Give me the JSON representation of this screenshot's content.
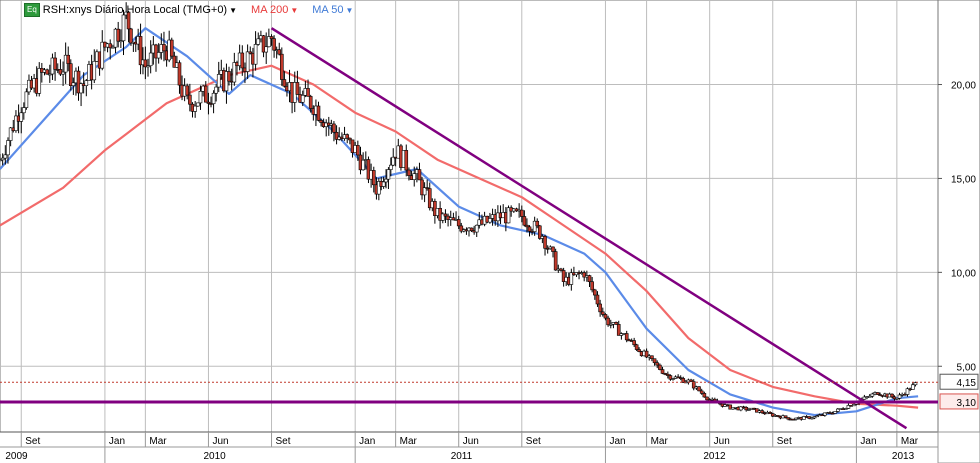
{
  "legend": {
    "badge": "Eq",
    "symbol_label": "RSH:xnys Diário Hora Local (TMG+0)",
    "ma200_label": "MA 200",
    "ma50_label": "MA 50"
  },
  "chart_data": {
    "type": "line",
    "title": "RSH:xnys Diário Hora Local (TMG+0)",
    "xlabel": "",
    "ylabel": "",
    "ylim": [
      1.5,
      24.5
    ],
    "x_range": [
      "2009-08-01",
      "2013-04-30"
    ],
    "y_ticks": [
      "5,00",
      "10,00",
      "15,00",
      "20,00"
    ],
    "y_tick_values": [
      5,
      10,
      15,
      20
    ],
    "last_price_label": "4,15",
    "last_price": 4.15,
    "support_label": "3,10",
    "support_level": 3.1,
    "month_ticks": [
      {
        "label": "Set",
        "date": "2009-09-01"
      },
      {
        "label": "Jan",
        "date": "2010-01-01"
      },
      {
        "label": "Mar",
        "date": "2010-03-01"
      },
      {
        "label": "Jun",
        "date": "2010-06-01"
      },
      {
        "label": "Set",
        "date": "2010-09-01"
      },
      {
        "label": "Jan",
        "date": "2011-01-01"
      },
      {
        "label": "Mar",
        "date": "2011-03-01"
      },
      {
        "label": "Jun",
        "date": "2011-06-01"
      },
      {
        "label": "Set",
        "date": "2011-09-01"
      },
      {
        "label": "Jan",
        "date": "2012-01-01"
      },
      {
        "label": "Mar",
        "date": "2012-03-01"
      },
      {
        "label": "Jun",
        "date": "2012-06-01"
      },
      {
        "label": "Set",
        "date": "2012-09-01"
      },
      {
        "label": "Jan",
        "date": "2013-01-01"
      },
      {
        "label": "Mar",
        "date": "2013-03-01"
      }
    ],
    "year_labels": [
      {
        "label": "2009",
        "date": "2009-08-25"
      },
      {
        "label": "2010",
        "date": "2010-06-10"
      },
      {
        "label": "2011",
        "date": "2011-06-05"
      },
      {
        "label": "2012",
        "date": "2012-06-08"
      },
      {
        "label": "2013",
        "date": "2013-03-10"
      }
    ],
    "year_boundaries": [
      "2010-01-01",
      "2011-01-01",
      "2012-01-01",
      "2013-01-01"
    ],
    "series": [
      {
        "name": "RSH",
        "color": "#000000",
        "style": "candlestick",
        "x": [
          "2009-08-01",
          "2009-09-01",
          "2009-10-01",
          "2009-11-01",
          "2009-12-01",
          "2010-01-01",
          "2010-02-01",
          "2010-03-01",
          "2010-04-01",
          "2010-05-01",
          "2010-06-01",
          "2010-07-01",
          "2010-08-01",
          "2010-09-01",
          "2010-10-01",
          "2010-11-01",
          "2010-12-01",
          "2011-01-01",
          "2011-02-01",
          "2011-03-01",
          "2011-04-01",
          "2011-05-01",
          "2011-06-01",
          "2011-07-01",
          "2011-08-01",
          "2011-09-01",
          "2011-10-01",
          "2011-11-01",
          "2011-12-01",
          "2012-01-01",
          "2012-02-01",
          "2012-03-01",
          "2012-04-01",
          "2012-05-01",
          "2012-06-01",
          "2012-07-01",
          "2012-08-01",
          "2012-09-01",
          "2012-10-01",
          "2012-11-01",
          "2012-12-01",
          "2013-01-01",
          "2013-02-01",
          "2013-03-01",
          "2013-04-01"
        ],
        "values": [
          16.0,
          19.0,
          20.5,
          21.0,
          20.0,
          22.0,
          23.5,
          21.0,
          22.0,
          19.0,
          19.5,
          20.5,
          21.5,
          22.5,
          19.5,
          19.0,
          17.5,
          16.5,
          14.5,
          16.5,
          15.0,
          13.0,
          12.5,
          12.5,
          13.0,
          13.0,
          12.0,
          9.5,
          10.0,
          7.5,
          6.5,
          5.5,
          4.5,
          4.2,
          3.2,
          2.8,
          2.7,
          2.4,
          2.2,
          2.3,
          2.6,
          3.1,
          3.6,
          3.3,
          4.15
        ]
      },
      {
        "name": "MA 200",
        "color": "#f26b6b",
        "x": [
          "2009-08-01",
          "2009-11-01",
          "2010-01-01",
          "2010-04-01",
          "2010-07-01",
          "2010-09-01",
          "2010-11-01",
          "2011-01-01",
          "2011-03-01",
          "2011-05-01",
          "2011-07-01",
          "2011-09-01",
          "2011-11-01",
          "2012-01-01",
          "2012-03-01",
          "2012-05-01",
          "2012-07-01",
          "2012-09-01",
          "2012-11-01",
          "2013-01-01",
          "2013-03-01",
          "2013-04-01"
        ],
        "values": [
          12.5,
          14.5,
          16.5,
          19.0,
          20.5,
          21.0,
          20.0,
          18.5,
          17.5,
          16.0,
          15.0,
          14.0,
          12.5,
          11.0,
          9.0,
          6.5,
          4.8,
          3.9,
          3.4,
          3.0,
          2.9,
          2.8
        ]
      },
      {
        "name": "MA 50",
        "color": "#5b8be8",
        "x": [
          "2009-08-01",
          "2009-10-01",
          "2009-12-01",
          "2010-02-01",
          "2010-03-01",
          "2010-05-01",
          "2010-07-01",
          "2010-08-01",
          "2010-10-01",
          "2010-12-01",
          "2011-02-01",
          "2011-04-01",
          "2011-06-01",
          "2011-08-01",
          "2011-10-01",
          "2011-12-01",
          "2012-01-01",
          "2012-03-01",
          "2012-05-01",
          "2012-07-01",
          "2012-09-01",
          "2012-11-01",
          "2013-01-01",
          "2013-03-01",
          "2013-04-01"
        ],
        "values": [
          15.5,
          18.0,
          20.5,
          22.0,
          23.0,
          21.5,
          19.5,
          20.5,
          19.5,
          17.5,
          15.0,
          15.5,
          13.5,
          12.5,
          12.0,
          11.0,
          10.0,
          7.0,
          4.8,
          3.5,
          2.8,
          2.4,
          2.6,
          3.3,
          3.4
        ]
      }
    ],
    "trendlines": [
      {
        "color": "#800080",
        "from": {
          "x": "2010-09-01",
          "y": 23.0
        },
        "to": {
          "x": "2013-03-15",
          "y": 1.7
        }
      },
      {
        "color": "#800080",
        "from": {
          "x": "2009-08-01",
          "y": 3.1
        },
        "to": {
          "x": "2013-04-30",
          "y": 3.1
        }
      }
    ],
    "grid": true,
    "legend_position": "top-left"
  }
}
